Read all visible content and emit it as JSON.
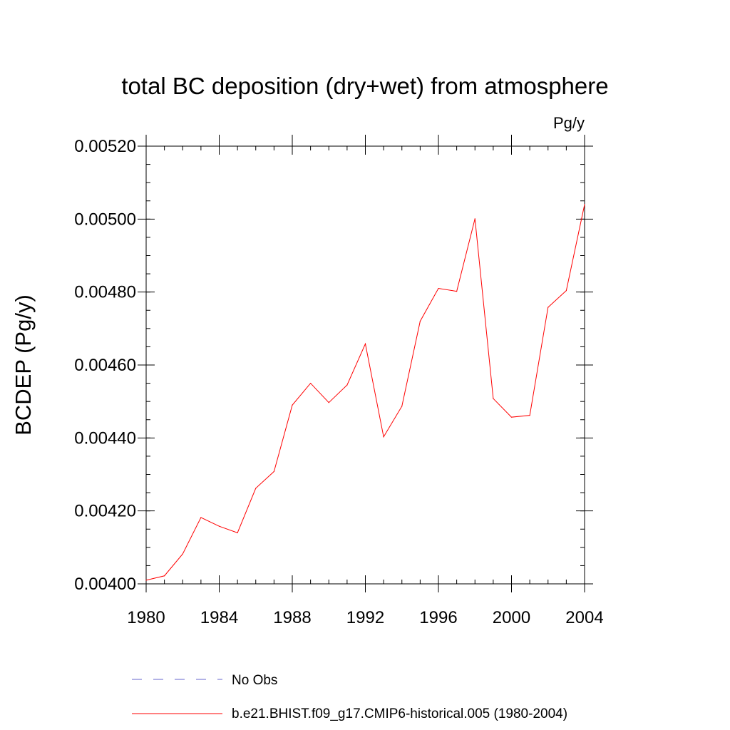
{
  "chart_data": {
    "type": "line",
    "title": "total BC deposition (dry+wet) from atmosphere",
    "units": "Pg/y",
    "ylabel": "BCDEP  (Pg/y)",
    "xlabel": "",
    "xlim": [
      1980,
      2004
    ],
    "ylim": [
      0.004,
      0.0052
    ],
    "x_ticks": [
      1980,
      1984,
      1988,
      1992,
      1996,
      2000,
      2004
    ],
    "x_tick_labels": [
      "1980",
      "1984",
      "1988",
      "1992",
      "1996",
      "2000",
      "2004"
    ],
    "y_ticks": [
      0.004,
      0.0042,
      0.0044,
      0.0046,
      0.0048,
      0.005,
      0.0052
    ],
    "y_tick_labels": [
      "0.00400",
      "0.00420",
      "0.00440",
      "0.00460",
      "0.00480",
      "0.00500",
      "0.00520"
    ],
    "grid": false,
    "legend": [
      {
        "label": "No Obs",
        "color": "#6666cc",
        "style": "dashed"
      },
      {
        "label": "b.e21.BHIST.f09_g17.CMIP6-historical.005 (1980-2004)",
        "color": "#ff0000",
        "style": "solid"
      }
    ],
    "series": [
      {
        "name": "b.e21.BHIST.f09_g17.CMIP6-historical.005 (1980-2004)",
        "color": "#ff0000",
        "x": [
          1980,
          1981,
          1982,
          1983,
          1984,
          1985,
          1986,
          1987,
          1988,
          1989,
          1990,
          1991,
          1992,
          1993,
          1994,
          1995,
          1996,
          1997,
          1998,
          1999,
          2000,
          2001,
          2002,
          2003,
          2004
        ],
        "values": [
          0.00401,
          0.004022,
          0.004082,
          0.004182,
          0.004158,
          0.00414,
          0.004262,
          0.004308,
          0.00449,
          0.00455,
          0.004497,
          0.004545,
          0.004658,
          0.004403,
          0.004487,
          0.00472,
          0.00481,
          0.004802,
          0.005001,
          0.004508,
          0.004457,
          0.004462,
          0.004758,
          0.004804,
          0.00504
        ]
      }
    ]
  }
}
